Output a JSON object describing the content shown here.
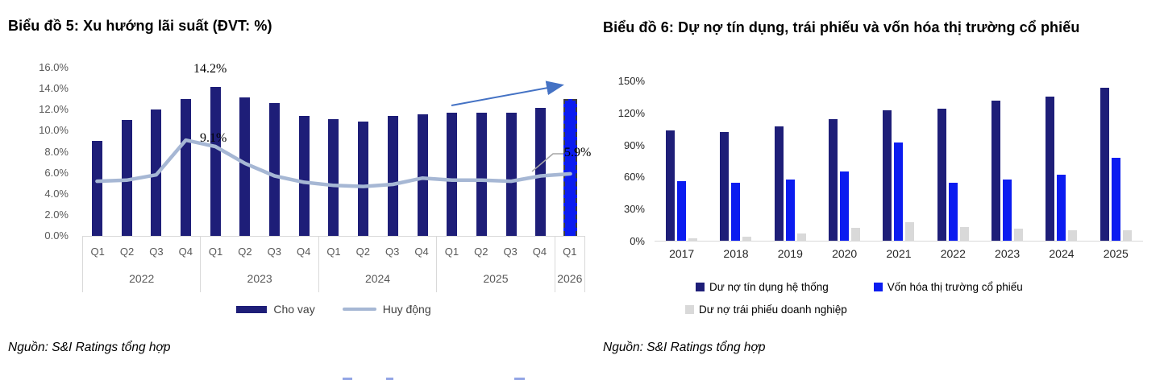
{
  "chart_data": [
    {
      "id": "chart5",
      "type": "bar+line",
      "title": "Biểu đồ 5: Xu hướng lãi suất (ĐVT: %)",
      "source": "Nguồn: S&I Ratings tổng hợp",
      "ylim": [
        0,
        16
      ],
      "y_ticks": [
        "16.0%",
        "14.0%",
        "12.0%",
        "10.0%",
        "8.0%",
        "6.0%",
        "4.0%",
        "2.0%",
        "0.0%"
      ],
      "x_groups": [
        {
          "year": "2022",
          "quarters": [
            "Q1",
            "Q2",
            "Q3",
            "Q4"
          ]
        },
        {
          "year": "2023",
          "quarters": [
            "Q1",
            "Q2",
            "Q3",
            "Q4"
          ]
        },
        {
          "year": "2024",
          "quarters": [
            "Q1",
            "Q2",
            "Q3",
            "Q4"
          ]
        },
        {
          "year": "2025",
          "quarters": [
            "Q1",
            "Q2",
            "Q3",
            "Q4"
          ]
        },
        {
          "year": "2026",
          "quarters": [
            "Q1"
          ]
        }
      ],
      "series": [
        {
          "name": "Cho vay",
          "type": "bar",
          "color": "#1e1e78",
          "values": [
            9.0,
            11.0,
            12.0,
            13.0,
            14.2,
            13.2,
            12.6,
            11.4,
            11.1,
            10.9,
            11.4,
            11.6,
            11.7,
            11.7,
            11.7,
            12.2,
            13.0
          ]
        },
        {
          "name": "Huy động",
          "type": "line",
          "color": "#a6b7d4",
          "values": [
            5.2,
            5.3,
            5.8,
            9.1,
            8.5,
            6.9,
            5.7,
            5.1,
            4.8,
            4.7,
            4.9,
            5.5,
            5.3,
            5.3,
            5.2,
            5.7,
            5.9
          ]
        }
      ],
      "forecast": {
        "category": "Q1 2026",
        "bar_color": "#0b1cf0",
        "outline": "dashed"
      },
      "annotations": [
        {
          "text": "14.2%",
          "target": "Cho vay Q1 2023"
        },
        {
          "text": "9.1%",
          "target": "Huy động Q4 2022"
        },
        {
          "text": "5.9%",
          "target": "Huy động Q1 2026"
        }
      ],
      "trend_arrow_color": "#4472c4",
      "legend_position": "bottom",
      "grid": false
    },
    {
      "id": "chart6",
      "type": "bar",
      "title": "Biểu đồ 6: Dự nợ tín dụng, trái phiếu và vốn hóa thị trường cổ phiếu",
      "source": "Nguồn: S&I Ratings tổng hợp",
      "ylim": [
        0,
        150
      ],
      "y_ticks": [
        "150%",
        "120%",
        "90%",
        "60%",
        "30%",
        "0%"
      ],
      "categories": [
        "2017",
        "2018",
        "2019",
        "2020",
        "2021",
        "2022",
        "2023",
        "2024",
        "2025"
      ],
      "series": [
        {
          "name": "Dư nợ tín dụng hệ thống",
          "color": "#1e1e78",
          "values": [
            103,
            102,
            107,
            114,
            122,
            124,
            131,
            135,
            143
          ]
        },
        {
          "name": "Vốn hóa thị trường cổ phiếu",
          "color": "#0b1cf0",
          "values": [
            56,
            54,
            57,
            65,
            92,
            54,
            57,
            62,
            78
          ]
        },
        {
          "name": "Dư nợ trái phiếu doanh nghiệp",
          "color": "#d9d9d9",
          "values": [
            2,
            4,
            7,
            12,
            17,
            13,
            11,
            10,
            10
          ]
        }
      ],
      "legend_position": "bottom",
      "grid": false
    }
  ]
}
